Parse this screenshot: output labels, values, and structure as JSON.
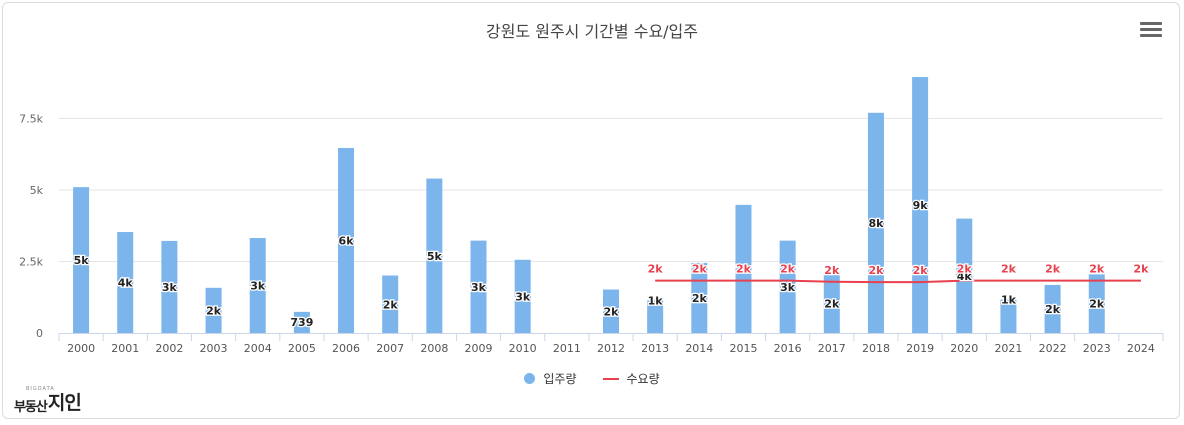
{
  "title": "강원도 원주시 기간별 수요/입주",
  "menu_icon": "hamburger-menu-icon",
  "logo": {
    "small": "BIGDATA",
    "main": "부동산",
    "accent": "지인"
  },
  "legend": {
    "supply_label": "입주량",
    "demand_label": "수요량"
  },
  "colors": {
    "supply": "#7cb5ec",
    "demand": "#e8414d",
    "grid": "#e6e6e6",
    "axis_text": "#666666"
  },
  "chart_data": {
    "type": "bar",
    "title": "강원도 원주시 기간별 수요/입주",
    "categories": [
      "2000",
      "2001",
      "2002",
      "2003",
      "2004",
      "2005",
      "2006",
      "2007",
      "2008",
      "2009",
      "2010",
      "2011",
      "2012",
      "2013",
      "2014",
      "2015",
      "2016",
      "2017",
      "2018",
      "2019",
      "2020",
      "2021",
      "2022",
      "2023",
      "2024"
    ],
    "y_ticks": [
      "0",
      "2.5k",
      "5k",
      "7.5k"
    ],
    "ylim": [
      0,
      9000
    ],
    "grid": true,
    "legend_position": "bottom-center",
    "series": [
      {
        "name": "입주량",
        "type": "bar",
        "values": [
          5100,
          3530,
          3220,
          1580,
          3320,
          739,
          6470,
          2010,
          5400,
          3230,
          2560,
          0,
          1520,
          1140,
          2450,
          4480,
          3230,
          2080,
          7700,
          8950,
          4000,
          1170,
          1680,
          2050,
          0
        ],
        "data_labels": [
          "5k",
          "4k",
          "3k",
          "2k",
          "3k",
          "739",
          "6k",
          "2k",
          "5k",
          "3k",
          "3k",
          "",
          "2k",
          "1k",
          "2k",
          "",
          "3k",
          "2k",
          "8k",
          "9k",
          "4k",
          "1k",
          "2k",
          "2k",
          ""
        ]
      },
      {
        "name": "수요량",
        "type": "line",
        "x": [
          "2013",
          "2014",
          "2015",
          "2016",
          "2017",
          "2018",
          "2019",
          "2020",
          "2021",
          "2022",
          "2023",
          "2024"
        ],
        "values": [
          1830,
          1830,
          1830,
          1830,
          1790,
          1780,
          1780,
          1830,
          1830,
          1830,
          1830,
          1830
        ],
        "data_labels": [
          "2k",
          "2k",
          "2k",
          "2k",
          "2k",
          "2k",
          "2k",
          "2k",
          "2k",
          "2k",
          "2k",
          "2k"
        ]
      }
    ]
  }
}
